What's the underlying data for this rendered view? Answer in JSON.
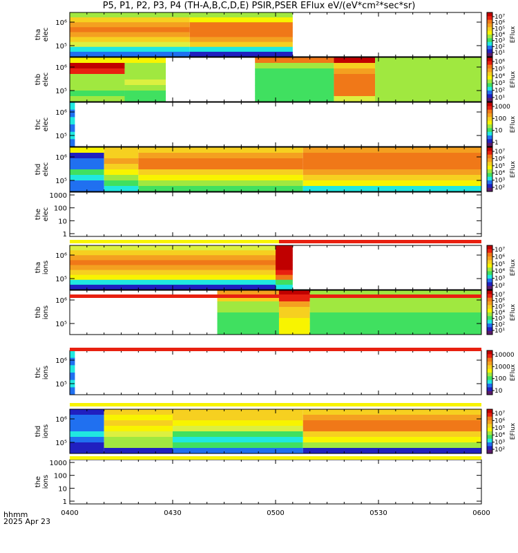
{
  "title": "P5, P1, P2, P3, P4 (TH-A,B,C,D,E) PSIR,PSER EFlux eV/(eV*cm²*sec*sr)",
  "footer": {
    "line1": "hhmm",
    "line2": "2025 Apr 23"
  },
  "colorbar_label": "EFlux",
  "colors": {
    "white": "#ffffff",
    "darkred": "#c00000",
    "red": "#e82010",
    "orange": "#f07818",
    "lorange": "#f4a020",
    "yorange": "#f6d020",
    "yellow": "#f8f400",
    "lyellow": "#dcf040",
    "lime": "#a0e840",
    "green": "#40e060",
    "cyan": "#20e8e0",
    "blue": "#2070f0",
    "navy": "#2020c0",
    "purple": "#5a1a6a",
    "black": "#000000"
  },
  "chart_data": {
    "type": "heatmap",
    "x_axis": {
      "range": [
        "0400",
        "0600"
      ],
      "ticks": [
        "0400",
        "0430",
        "0500",
        "0530",
        "0600"
      ],
      "label": "hhmm"
    },
    "panels": [
      {
        "id": "tha_elec",
        "ylabel": [
          "tha",
          "elec"
        ],
        "yticks": [
          "10⁶",
          "10⁵"
        ],
        "colorbar": {
          "ticks": [
            "10⁷",
            "10⁶",
            "10⁵",
            "10⁴",
            "10³",
            "10²",
            "10¹"
          ]
        },
        "segments": [
          {
            "t0": 0,
            "t1": 35,
            "bands": [
              "lime",
              "yorange",
              "lorange",
              "orange",
              "lorange",
              "yorange",
              "lyellow",
              "cyan",
              "blue"
            ]
          },
          {
            "t0": 35,
            "t1": 65,
            "bands": [
              "lime",
              "yellow",
              "orange",
              "orange",
              "orange",
              "lorange",
              "yorange",
              "cyan",
              "navy"
            ]
          }
        ]
      },
      {
        "id": "thb_elec",
        "ylabel": [
          "thb",
          "elec"
        ],
        "yticks": [
          "10⁶",
          "10⁵"
        ],
        "colorbar": {
          "ticks": [
            "10⁶",
            "10⁵",
            "10⁴",
            "10³",
            "10²",
            "10¹"
          ]
        },
        "segments": [
          {
            "t0": 0,
            "t1": 16,
            "bands": [
              "yellow",
              "darkred",
              "red",
              "lime",
              "lime",
              "lime",
              "green",
              "lime"
            ]
          },
          {
            "t0": 16,
            "t1": 28,
            "bands": [
              "yellow",
              "lime",
              "lime",
              "lime",
              "lyellow",
              "lime",
              "green",
              "green"
            ]
          },
          {
            "t0": 54,
            "t1": 77,
            "bands": [
              "orange",
              "lime",
              "green",
              "green",
              "green",
              "green",
              "green",
              "green"
            ]
          },
          {
            "t0": 77,
            "t1": 89,
            "bands": [
              "darkred",
              "yorange",
              "lorange",
              "orange",
              "orange",
              "orange",
              "orange",
              "lyellow"
            ]
          },
          {
            "t0": 89,
            "t1": 120,
            "bands": [
              "lime",
              "lime",
              "lime",
              "lime",
              "lime",
              "lime",
              "lime",
              "lime"
            ]
          }
        ]
      },
      {
        "id": "thc_elec",
        "ylabel": [
          "thc",
          "elec"
        ],
        "yticks": [
          "10⁶",
          "10⁵"
        ],
        "colorbar": {
          "ticks": [
            "1000",
            "100",
            "10",
            "1"
          ]
        },
        "segments": [
          {
            "t0": 0,
            "t1": 1.5,
            "bands": [
              "cyan",
              "blue",
              "cyan",
              "blue",
              "cyan",
              "blue"
            ]
          }
        ]
      },
      {
        "id": "thd_elec",
        "ylabel": [
          "thd",
          "elec"
        ],
        "yticks": [
          "10⁶",
          "10⁵"
        ],
        "colorbar": {
          "ticks": [
            "10⁷",
            "10⁶",
            "10⁵",
            "10⁴",
            "10³",
            "10²"
          ]
        },
        "segments": [
          {
            "t0": 0,
            "t1": 10,
            "bands": [
              "yellow",
              "navy",
              "blue",
              "blue",
              "green",
              "cyan",
              "blue",
              "blue"
            ]
          },
          {
            "t0": 10,
            "t1": 20,
            "bands": [
              "yorange",
              "yorange",
              "lorange",
              "yorange",
              "yellow",
              "lime",
              "green",
              "cyan"
            ]
          },
          {
            "t0": 20,
            "t1": 68,
            "bands": [
              "yorange",
              "lorange",
              "orange",
              "orange",
              "yorange",
              "yellow",
              "lime",
              "green"
            ]
          },
          {
            "t0": 68,
            "t1": 120,
            "bands": [
              "lorange",
              "orange",
              "orange",
              "orange",
              "lorange",
              "yorange",
              "yellow",
              "cyan"
            ]
          }
        ]
      },
      {
        "id": "the_elec",
        "ylabel": [
          "the",
          "elec"
        ],
        "yticks": [
          "1000",
          "100",
          "10",
          "1"
        ],
        "colorbar": null,
        "segments": []
      },
      {
        "id": "tha_ions",
        "ylabel": [
          "tha",
          "ions"
        ],
        "yticks": [
          "10⁶",
          "10⁵"
        ],
        "colorbar": {
          "ticks": [
            "10⁷",
            "10⁶",
            "10⁵",
            "10⁴",
            "10³",
            "10²"
          ]
        },
        "segments": [
          {
            "t0": 0,
            "t1": 60,
            "bands": [
              "lyellow",
              "yorange",
              "lorange",
              "orange",
              "lorange",
              "yorange",
              "yellow",
              "cyan",
              "navy"
            ]
          },
          {
            "t0": 60,
            "t1": 65,
            "bands": [
              "darkred",
              "darkred",
              "darkred",
              "darkred",
              "darkred",
              "red",
              "orange",
              "green",
              "cyan"
            ]
          }
        ]
      },
      {
        "id": "thb_ions",
        "ylabel": [
          "thb",
          "ions"
        ],
        "yticks": [
          "10⁶",
          "10⁵"
        ],
        "colorbar": {
          "ticks": [
            "10⁷",
            "10⁶",
            "10⁵",
            "10⁴",
            "10³",
            "10²",
            "10¹"
          ]
        },
        "segments": [
          {
            "t0": 43,
            "t1": 61,
            "bands": [
              "lorange",
              "yorange",
              "lime",
              "lime",
              "green",
              "green",
              "green",
              "green"
            ]
          },
          {
            "t0": 61,
            "t1": 70,
            "bands": [
              "darkred",
              "red",
              "lorange",
              "yorange",
              "yorange",
              "yellow",
              "yellow",
              "yellow"
            ]
          },
          {
            "t0": 70,
            "t1": 120,
            "bands": [
              "lime",
              "lime",
              "lime",
              "lime",
              "green",
              "green",
              "green",
              "green"
            ]
          }
        ]
      },
      {
        "id": "thc_ions",
        "ylabel": [
          "thc",
          "ions"
        ],
        "yticks": [
          "10⁶",
          "10⁵"
        ],
        "colorbar": {
          "ticks": [
            "10000",
            "1000",
            "100",
            "10"
          ]
        },
        "segments": [
          {
            "t0": 0,
            "t1": 1.5,
            "bands": [
              "cyan",
              "blue",
              "cyan",
              "blue",
              "cyan",
              "blue"
            ]
          }
        ]
      },
      {
        "id": "thd_ions",
        "ylabel": [
          "thd",
          "ions"
        ],
        "yticks": [
          "10⁶",
          "10⁵"
        ],
        "colorbar": {
          "ticks": [
            "10⁷",
            "10⁶",
            "10⁵",
            "10⁴",
            "10³",
            "10²"
          ]
        },
        "segments": [
          {
            "t0": 0,
            "t1": 10,
            "bands": [
              "navy",
              "blue",
              "blue",
              "blue",
              "cyan",
              "blue",
              "navy",
              "navy"
            ]
          },
          {
            "t0": 10,
            "t1": 30,
            "bands": [
              "yorange",
              "yellow",
              "yorange",
              "yellow",
              "lyellow",
              "lime",
              "lime",
              "navy"
            ]
          },
          {
            "t0": 30,
            "t1": 68,
            "bands": [
              "yorange",
              "yorange",
              "yellow",
              "lyellow",
              "green",
              "cyan",
              "green",
              "blue"
            ]
          },
          {
            "t0": 68,
            "t1": 120,
            "bands": [
              "yorange",
              "lorange",
              "orange",
              "orange",
              "yorange",
              "yellow",
              "lime",
              "navy"
            ]
          }
        ]
      },
      {
        "id": "the_ions",
        "ylabel": [
          "the",
          "ions"
        ],
        "yticks": [
          "1000",
          "100",
          "10",
          "1"
        ],
        "colorbar": null,
        "segments": []
      }
    ],
    "mode_bars": [
      {
        "segments": [
          {
            "t0": 0,
            "t1": 61,
            "color": "yellow"
          },
          {
            "t0": 61,
            "t1": 120,
            "color": "red"
          }
        ]
      },
      {
        "segments": [
          {
            "t0": 0,
            "t1": 120,
            "color": "red"
          }
        ]
      },
      {
        "segments": [
          {
            "t0": 0,
            "t1": 120,
            "color": "red"
          }
        ]
      },
      {
        "segments": [
          {
            "t0": 0,
            "t1": 120,
            "color": "yellow"
          }
        ]
      },
      {
        "segments": [
          {
            "t0": 0,
            "t1": 120,
            "color": "yellow"
          }
        ]
      }
    ]
  }
}
